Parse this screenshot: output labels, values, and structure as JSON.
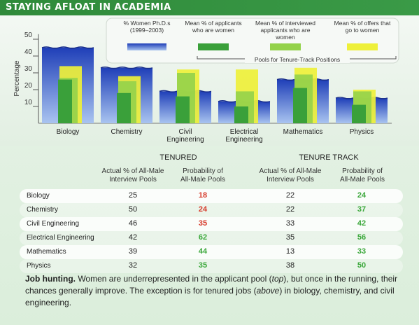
{
  "header": {
    "title": "STAYING AFLOAT IN ACADEMIA"
  },
  "chart_data": {
    "type": "bar",
    "ylabel": "Percentage",
    "yticks": [
      10,
      20,
      30,
      40,
      50
    ],
    "ylim": [
      0,
      55
    ],
    "categories": [
      "Biology",
      "Chemistry",
      "Civil\nEngineering",
      "Electrical\nEngineering",
      "Mathematics",
      "Physics"
    ],
    "series": [
      {
        "name": "% Women Ph.D.s (1999–2003)",
        "values": [
          45,
          33,
          19,
          13,
          26,
          15
        ]
      },
      {
        "name": "Mean % of applicants who are women",
        "values": [
          26,
          18,
          16,
          10,
          21,
          11
        ]
      },
      {
        "name": "Mean % of interviewed applicants who are women",
        "values": [
          27,
          25,
          30,
          19,
          29,
          19
        ]
      },
      {
        "name": "Mean % of offers that go to women",
        "values": [
          34,
          28,
          32,
          32,
          33,
          20
        ]
      }
    ],
    "legend_placement": "top-right",
    "annotation": "Pools for Tenure-Track Positions"
  },
  "colors": {
    "women_phd": "#2a4fc7",
    "applicants": "#3aa03a",
    "interviewed": "#93d24a",
    "offers": "#eef03a"
  },
  "table": {
    "groups": [
      "TENURED",
      "TENURE TRACK"
    ],
    "col_headers": [
      "Actual % of All-Male\nInterview Pools",
      "Probability of\nAll-Male Pools",
      "Actual % of All-Male\nInterview Pools",
      "Probability of\nAll-Male Pools"
    ],
    "rows": [
      {
        "label": "Biology",
        "tenured_actual": "25",
        "tenured_prob": "18",
        "tt_actual": "22",
        "tt_prob": "24"
      },
      {
        "label": "Chemistry",
        "tenured_actual": "50",
        "tenured_prob": "24",
        "tt_actual": "22",
        "tt_prob": "37"
      },
      {
        "label": "Civil Engineering",
        "tenured_actual": "46",
        "tenured_prob": "35",
        "tt_actual": "33",
        "tt_prob": "42"
      },
      {
        "label": "Electrical Engineering",
        "tenured_actual": "42",
        "tenured_prob": "62",
        "tt_actual": "35",
        "tt_prob": "56"
      },
      {
        "label": "Mathematics",
        "tenured_actual": "39",
        "tenured_prob": "44",
        "tt_actual": "13",
        "tt_prob": "33"
      },
      {
        "label": "Physics",
        "tenured_actual": "32",
        "tenured_prob": "35",
        "tt_actual": "38",
        "tt_prob": "50"
      }
    ],
    "tenured_prob_colors": [
      "red",
      "red",
      "red",
      "green",
      "green",
      "green"
    ],
    "tt_prob_colors": [
      "green",
      "green",
      "green",
      "green",
      "green",
      "green"
    ]
  },
  "caption": {
    "bold": "Job hunting.",
    "part1": " Women are underrepresented in the applicant pool (",
    "italic1": "top",
    "part2": "), but once in the running, their chances generally improve. The exception is for tenured jobs (",
    "italic2": "above",
    "part3": ") in biology, chemistry, and civil engineering."
  }
}
